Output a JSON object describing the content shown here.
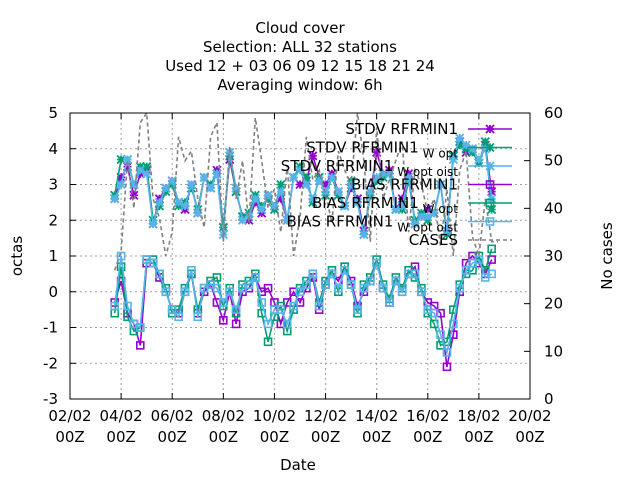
{
  "chart_data": {
    "type": "line",
    "title_lines": [
      "Cloud cover",
      "Selection: ALL      32 stations",
      "Used  12 + 03 06 09 12 15 18 21 24",
      "Averaging window:  6h"
    ],
    "xlabel": "Date",
    "ylabel": "octas",
    "y2label": "No cases",
    "xlim": [
      0,
      18
    ],
    "ylim": [
      -3,
      5
    ],
    "y2lim": [
      0,
      60
    ],
    "x_ticks": [
      {
        "x": 0,
        "l1": "02/02",
        "l2": "00Z"
      },
      {
        "x": 2,
        "l1": "04/02",
        "l2": "00Z"
      },
      {
        "x": 4,
        "l1": "06/02",
        "l2": "00Z"
      },
      {
        "x": 6,
        "l1": "08/02",
        "l2": "00Z"
      },
      {
        "x": 8,
        "l1": "10/02",
        "l2": "00Z"
      },
      {
        "x": 10,
        "l1": "12/02",
        "l2": "00Z"
      },
      {
        "x": 12,
        "l1": "14/02",
        "l2": "00Z"
      },
      {
        "x": 14,
        "l1": "16/02",
        "l2": "00Z"
      },
      {
        "x": 16,
        "l1": "18/02",
        "l2": "00Z"
      },
      {
        "x": 18,
        "l1": "20/02",
        "l2": "00Z"
      }
    ],
    "y_ticks": [
      "-3",
      "-2",
      "-1",
      "0",
      "1",
      "2",
      "3",
      "4",
      "5"
    ],
    "y2_ticks": [
      "0",
      "10",
      "20",
      "30",
      "40",
      "50",
      "60"
    ],
    "grid": true,
    "legend_position": "top-right",
    "series": [
      {
        "name": "STDV RFRMIN1",
        "legend_sub": "",
        "color": "#9400d3",
        "marker": "star",
        "axis": "y",
        "x": [
          1.75,
          2.0,
          2.25,
          2.5,
          2.75,
          3.0,
          3.25,
          3.5,
          3.75,
          4.0,
          4.25,
          4.5,
          4.75,
          5.0,
          5.25,
          5.5,
          5.75,
          6.0,
          6.25,
          6.5,
          6.75,
          7.0,
          7.25,
          7.5,
          7.75,
          8.0,
          8.25,
          8.5,
          8.75,
          9.0,
          9.25,
          9.5,
          9.75,
          10.0,
          10.25,
          10.5,
          10.75,
          11.0,
          11.25,
          11.5,
          11.75,
          12.0,
          12.25,
          12.5,
          12.75,
          13.0,
          13.25,
          13.5,
          13.75,
          14.0,
          14.25,
          14.5,
          14.75,
          15.0,
          15.25,
          15.5,
          15.75,
          16.0,
          16.25,
          16.5
        ],
        "values": [
          2.6,
          3.2,
          3.5,
          2.7,
          3.3,
          3.4,
          1.9,
          2.6,
          2.9,
          3.1,
          2.5,
          2.3,
          3.0,
          2.2,
          3.2,
          2.9,
          3.4,
          1.8,
          3.7,
          2.8,
          2.1,
          2.0,
          2.5,
          2.2,
          2.7,
          2.4,
          2.6,
          2.0,
          3.2,
          3.0,
          3.1,
          3.8,
          3.2,
          3.0,
          3.3,
          2.8,
          2.4,
          2.9,
          2.6,
          1.7,
          2.7,
          3.9,
          3.3,
          3.4,
          2.3,
          2.6,
          3.3,
          1.9,
          2.1,
          2.3,
          2.2,
          3.0,
          1.7,
          3.8,
          4.2,
          3.9,
          4.0,
          3.6,
          4.1,
          2.8
        ]
      },
      {
        "name": "STDV RFRMIN1",
        "legend_sub": "W opt",
        "color": "#009e73",
        "marker": "star",
        "axis": "y",
        "x": [
          1.75,
          2.0,
          2.25,
          2.5,
          2.75,
          3.0,
          3.25,
          3.5,
          3.75,
          4.0,
          4.25,
          4.5,
          4.75,
          5.0,
          5.25,
          5.5,
          5.75,
          6.0,
          6.25,
          6.5,
          6.75,
          7.0,
          7.25,
          7.5,
          7.75,
          8.0,
          8.25,
          8.5,
          8.75,
          9.0,
          9.25,
          9.5,
          9.75,
          10.0,
          10.25,
          10.5,
          10.75,
          11.0,
          11.25,
          11.5,
          11.75,
          12.0,
          12.25,
          12.5,
          12.75,
          13.0,
          13.25,
          13.5,
          13.75,
          14.0,
          14.25,
          14.5,
          14.75,
          15.0,
          15.25,
          15.5,
          15.75,
          16.0,
          16.25,
          16.5
        ],
        "values": [
          2.7,
          3.7,
          3.7,
          3.0,
          3.5,
          3.5,
          2.0,
          2.4,
          2.8,
          3.0,
          2.4,
          2.5,
          2.9,
          2.3,
          3.2,
          3.0,
          3.3,
          1.8,
          3.8,
          2.8,
          2.1,
          2.2,
          2.7,
          2.4,
          2.6,
          2.3,
          3.0,
          2.0,
          3.2,
          3.5,
          3.2,
          2.5,
          3.2,
          2.7,
          3.2,
          2.7,
          2.4,
          3.1,
          2.5,
          1.6,
          2.7,
          3.1,
          3.2,
          3.3,
          2.3,
          2.3,
          3.1,
          2.0,
          2.2,
          2.0,
          2.2,
          3.0,
          1.6,
          3.8,
          4.1,
          4.0,
          3.9,
          3.6,
          4.2,
          2.3
        ]
      },
      {
        "name": "STDV RFRMIN1",
        "legend_sub": "W opt oist",
        "color": "#56b4e9",
        "marker": "star",
        "axis": "y",
        "x": [
          1.75,
          2.0,
          2.25,
          2.5,
          2.75,
          3.0,
          3.25,
          3.5,
          3.75,
          4.0,
          4.25,
          4.5,
          4.75,
          5.0,
          5.25,
          5.5,
          5.75,
          6.0,
          6.25,
          6.5,
          6.75,
          7.0,
          7.25,
          7.5,
          7.75,
          8.0,
          8.25,
          8.5,
          8.75,
          9.0,
          9.25,
          9.5,
          9.75,
          10.0,
          10.25,
          10.5,
          10.75,
          11.0,
          11.25,
          11.5,
          11.75,
          12.0,
          12.25,
          12.5,
          12.75,
          13.0,
          13.25,
          13.5,
          13.75,
          14.0,
          14.25,
          14.5,
          14.75,
          15.0,
          15.25,
          15.5,
          15.75,
          16.0,
          16.25,
          16.5
        ],
        "values": [
          2.6,
          3.0,
          3.7,
          3.0,
          3.4,
          3.3,
          1.9,
          2.5,
          2.9,
          3.1,
          2.5,
          2.4,
          3.0,
          2.2,
          3.2,
          2.9,
          3.3,
          1.6,
          3.9,
          2.9,
          2.0,
          2.1,
          2.6,
          2.3,
          2.7,
          2.4,
          2.8,
          2.0,
          3.2,
          3.4,
          3.0,
          2.6,
          3.1,
          2.8,
          3.2,
          2.8,
          2.4,
          3.0,
          2.5,
          1.6,
          2.8,
          3.2,
          3.3,
          3.3,
          2.3,
          2.4,
          3.2,
          1.9,
          2.1,
          2.1,
          2.2,
          3.0,
          1.7,
          3.7,
          4.3,
          4.1,
          4.0,
          3.7,
          4.0,
          2.6
        ]
      },
      {
        "name": "BIAS RFRMIN1",
        "legend_sub": "",
        "color": "#9400d3",
        "marker": "box",
        "axis": "y",
        "x": [
          1.75,
          2.0,
          2.25,
          2.5,
          2.75,
          3.0,
          3.25,
          3.5,
          3.75,
          4.0,
          4.25,
          4.5,
          4.75,
          5.0,
          5.25,
          5.5,
          5.75,
          6.0,
          6.25,
          6.5,
          6.75,
          7.0,
          7.25,
          7.5,
          7.75,
          8.0,
          8.25,
          8.5,
          8.75,
          9.0,
          9.25,
          9.5,
          9.75,
          10.0,
          10.25,
          10.5,
          10.75,
          11.0,
          11.25,
          11.5,
          11.75,
          12.0,
          12.25,
          12.5,
          12.75,
          13.0,
          13.25,
          13.5,
          13.75,
          14.0,
          14.25,
          14.5,
          14.75,
          15.0,
          15.25,
          15.5,
          15.75,
          16.0,
          16.25,
          16.5
        ],
        "values": [
          -0.3,
          0.3,
          -0.6,
          -0.9,
          -1.5,
          0.8,
          0.8,
          0.4,
          0.0,
          -0.5,
          -0.6,
          0.0,
          0.5,
          -0.6,
          0.0,
          0.2,
          -0.3,
          -0.8,
          0.0,
          -0.9,
          0.0,
          0.1,
          0.4,
          0.0,
          0.1,
          -0.3,
          -0.9,
          -0.3,
          0.0,
          -0.3,
          0.1,
          0.4,
          -0.5,
          0.2,
          0.5,
          0.3,
          0.7,
          0.3,
          -0.4,
          0.0,
          0.3,
          0.8,
          0.1,
          -0.3,
          0.3,
          0.0,
          0.5,
          0.7,
          0.0,
          -0.3,
          -0.4,
          -0.6,
          -2.1,
          -1.2,
          0.0,
          0.8,
          1.0,
          0.8,
          0.5,
          0.9
        ]
      },
      {
        "name": "BIAS RFRMIN1",
        "legend_sub": "W opt",
        "color": "#009e73",
        "marker": "box",
        "axis": "y",
        "x": [
          1.75,
          2.0,
          2.25,
          2.5,
          2.75,
          3.0,
          3.25,
          3.5,
          3.75,
          4.0,
          4.25,
          4.5,
          4.75,
          5.0,
          5.25,
          5.5,
          5.75,
          6.0,
          6.25,
          6.5,
          6.75,
          7.0,
          7.25,
          7.5,
          7.75,
          8.0,
          8.25,
          8.5,
          8.75,
          9.0,
          9.25,
          9.5,
          9.75,
          10.0,
          10.25,
          10.5,
          10.75,
          11.0,
          11.25,
          11.5,
          11.75,
          12.0,
          12.25,
          12.5,
          12.75,
          13.0,
          13.25,
          13.5,
          13.75,
          14.0,
          14.25,
          14.5,
          14.75,
          15.0,
          15.25,
          15.5,
          15.75,
          16.0,
          16.25,
          16.5
        ],
        "values": [
          -0.6,
          0.7,
          -0.7,
          -1.1,
          -1.0,
          0.9,
          0.9,
          0.5,
          0.1,
          -0.6,
          -0.5,
          0.1,
          0.5,
          -0.5,
          0.1,
          0.3,
          0.4,
          -0.4,
          0.1,
          -0.6,
          0.2,
          0.3,
          0.5,
          -0.6,
          -1.4,
          -0.7,
          -0.4,
          -1.1,
          -0.5,
          0.1,
          0.3,
          0.5,
          -0.3,
          0.3,
          0.6,
          0.0,
          0.7,
          0.2,
          -0.6,
          0.2,
          0.4,
          0.9,
          0.2,
          -0.2,
          0.4,
          0.1,
          0.6,
          0.4,
          0.1,
          -0.6,
          -0.9,
          -1.5,
          -1.4,
          -0.5,
          0.2,
          0.5,
          0.6,
          1.0,
          0.6,
          1.2
        ]
      },
      {
        "name": "BIAS RFRMIN1",
        "legend_sub": "W opt oist",
        "color": "#56b4e9",
        "marker": "box",
        "axis": "y",
        "x": [
          1.75,
          2.0,
          2.25,
          2.5,
          2.75,
          3.0,
          3.25,
          3.5,
          3.75,
          4.0,
          4.25,
          4.5,
          4.75,
          5.0,
          5.25,
          5.5,
          5.75,
          6.0,
          6.25,
          6.5,
          6.75,
          7.0,
          7.25,
          7.5,
          7.75,
          8.0,
          8.25,
          8.5,
          8.75,
          9.0,
          9.25,
          9.5,
          9.75,
          10.0,
          10.25,
          10.5,
          10.75,
          11.0,
          11.25,
          11.5,
          11.75,
          12.0,
          12.25,
          12.5,
          12.75,
          13.0,
          13.25,
          13.5,
          13.75,
          14.0,
          14.25,
          14.5,
          14.75,
          15.0,
          15.25,
          15.5,
          15.75,
          16.0,
          16.25,
          16.5
        ],
        "values": [
          -0.4,
          1.0,
          -0.4,
          -0.9,
          -1.0,
          0.9,
          0.8,
          0.5,
          0.0,
          -0.5,
          -0.7,
          0.0,
          0.6,
          -0.7,
          0.1,
          0.2,
          0.1,
          -0.3,
          0.0,
          -0.5,
          0.1,
          0.2,
          0.4,
          -0.3,
          -0.9,
          -0.5,
          -0.5,
          -0.9,
          -0.4,
          0.0,
          0.2,
          0.5,
          -0.4,
          0.2,
          0.5,
          0.1,
          0.6,
          0.2,
          -0.5,
          0.1,
          0.3,
          0.8,
          0.1,
          -0.3,
          0.3,
          0.0,
          0.5,
          0.5,
          0.0,
          -0.5,
          -0.6,
          -1.2,
          -1.7,
          -0.9,
          0.1,
          0.6,
          0.8,
          0.9,
          0.4,
          0.5
        ]
      },
      {
        "name": "CASES",
        "legend_sub": "",
        "color": "#808080",
        "marker": "none",
        "dashed": true,
        "axis": "y2",
        "x": [
          1.75,
          2.0,
          2.25,
          2.5,
          2.75,
          3.0,
          3.25,
          3.5,
          3.75,
          4.0,
          4.25,
          4.5,
          4.75,
          5.0,
          5.25,
          5.5,
          5.75,
          6.0,
          6.25,
          6.5,
          6.75,
          7.0,
          7.25,
          7.5,
          7.75,
          8.0,
          8.25,
          8.5,
          8.75,
          9.0,
          9.25,
          9.5,
          9.75,
          10.0,
          10.25,
          10.5,
          10.75,
          11.0,
          11.25,
          11.5,
          11.75,
          12.0,
          12.25,
          12.5,
          12.75,
          13.0,
          13.25,
          13.5,
          13.75,
          14.0,
          14.25,
          14.5,
          14.75,
          15.0,
          15.25,
          15.5,
          15.75,
          16.0,
          16.25,
          16.5,
          16.75
        ],
        "values": [
          27,
          31,
          50,
          40,
          58,
          60,
          42,
          38,
          30,
          35,
          55,
          50,
          52,
          42,
          36,
          55,
          58,
          33,
          53,
          42,
          50,
          37,
          59,
          50,
          40,
          44,
          35,
          49,
          30,
          38,
          55,
          46,
          48,
          43,
          37,
          52,
          48,
          45,
          60,
          50,
          33,
          57,
          42,
          46,
          50,
          54,
          35,
          48,
          45,
          39,
          42,
          32,
          44,
          30,
          48,
          52,
          34,
          30,
          42,
          33,
          33
        ]
      }
    ]
  }
}
